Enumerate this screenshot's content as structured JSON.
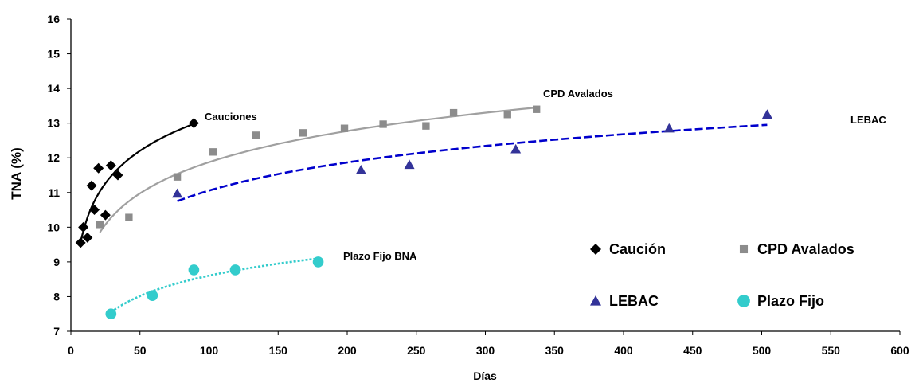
{
  "chart_data": {
    "type": "scatter",
    "xlabel": "Días",
    "ylabel": "TNA (%)",
    "xlim": [
      0,
      600
    ],
    "ylim": [
      7,
      16
    ],
    "xticks": [
      0,
      50,
      100,
      150,
      200,
      250,
      300,
      350,
      400,
      450,
      500,
      550,
      600
    ],
    "yticks": [
      7,
      8,
      9,
      10,
      11,
      12,
      13,
      14,
      15,
      16
    ],
    "grid": false,
    "legend_position": "right",
    "series": [
      {
        "name": "Caución",
        "marker": "diamond",
        "color": "#000000",
        "x": [
          7,
          9,
          12,
          15,
          17,
          20,
          25,
          29,
          34,
          89
        ],
        "y": [
          9.55,
          10.0,
          9.7,
          11.2,
          10.5,
          11.7,
          10.35,
          11.78,
          11.5,
          13.0
        ]
      },
      {
        "name": "CPD Avalados",
        "marker": "square",
        "color": "#8c8c8c",
        "x": [
          21,
          42,
          77,
          103,
          134,
          168,
          198,
          226,
          257,
          277,
          316,
          337
        ],
        "y": [
          10.08,
          10.28,
          11.45,
          12.17,
          12.65,
          12.72,
          12.85,
          12.97,
          12.92,
          13.3,
          13.25,
          13.4
        ]
      },
      {
        "name": "LEBAC",
        "marker": "triangle",
        "color": "#333399",
        "x": [
          77,
          210,
          245,
          322,
          433,
          504
        ],
        "y": [
          10.97,
          11.65,
          11.8,
          12.25,
          12.85,
          13.25
        ]
      },
      {
        "name": "Plazo Fijo",
        "marker": "circle",
        "color": "#33cccc",
        "x": [
          29,
          59,
          89,
          119,
          179
        ],
        "y": [
          7.5,
          8.03,
          8.77,
          8.77,
          9.0
        ]
      }
    ],
    "trendlines": [
      {
        "series": "Caución",
        "type": "log",
        "style": "solid",
        "color": "#000000",
        "x_range": [
          7,
          89
        ],
        "y_range": [
          9.55,
          12.98
        ]
      },
      {
        "series": "CPD Avalados",
        "type": "log",
        "style": "solid",
        "color": "#a0a0a0",
        "x_range": [
          21,
          337
        ],
        "y_range": [
          9.85,
          13.45
        ]
      },
      {
        "series": "LEBAC",
        "type": "log",
        "style": "dashed",
        "color": "#0000cc",
        "x_range": [
          77,
          504
        ],
        "y_range": [
          10.75,
          12.95
        ]
      },
      {
        "series": "Plazo Fijo",
        "type": "log",
        "style": "dotted",
        "color": "#33cccc",
        "x_range": [
          29,
          179
        ],
        "y_range": [
          7.55,
          9.1
        ]
      }
    ],
    "annotations": [
      {
        "text": "Cauciones"
      },
      {
        "text": "CPD Avalados"
      },
      {
        "text": "LEBAC"
      },
      {
        "text": "Plazo Fijo BNA"
      }
    ]
  }
}
